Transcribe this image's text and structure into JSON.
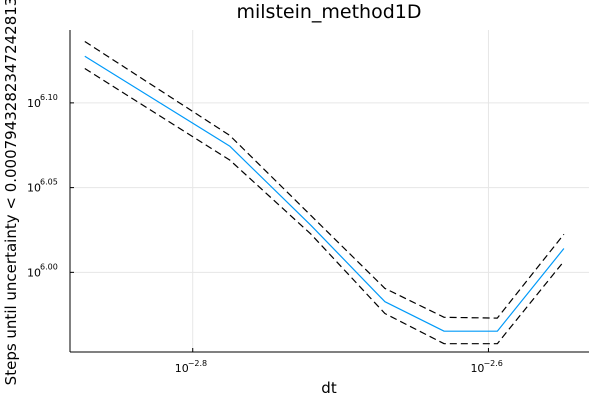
{
  "chart_data": {
    "type": "line",
    "title": "milstein_method1D",
    "xlabel": "dt",
    "ylabel": "Steps until uncertainty < 0.0007943282347242813",
    "x_scale": "log10",
    "y_scale": "log10",
    "xlim_log10": [
      -2.883,
      -2.532
    ],
    "ylim_log10": [
      5.953,
      6.143
    ],
    "grid": true,
    "legend": "none",
    "x_ticks": [
      {
        "base": "10",
        "exp": "−2.8",
        "log10": -2.8
      },
      {
        "base": "10",
        "exp": "−2.6",
        "log10": -2.6
      }
    ],
    "y_ticks": [
      {
        "base": "10",
        "exp": "6.10",
        "log10": 6.1
      },
      {
        "base": "10",
        "exp": "6.05",
        "log10": 6.05
      },
      {
        "base": "10",
        "exp": "6.00",
        "log10": 6.0
      }
    ],
    "series": [
      {
        "role": "mean",
        "color": "#009af9",
        "dash": "solid",
        "x_log10": [
          -2.873,
          -2.775,
          -2.72,
          -2.67,
          -2.63,
          -2.594,
          -2.549
        ],
        "y_log10": [
          6.1275,
          6.0745,
          6.0277,
          5.9827,
          5.9653,
          5.9653,
          6.0141
        ]
      },
      {
        "role": "upper",
        "color": "#000000",
        "dash": "dashed",
        "x_log10": [
          -2.873,
          -2.775,
          -2.72,
          -2.67,
          -2.63,
          -2.594,
          -2.549
        ],
        "y_log10": [
          6.1362,
          6.0808,
          6.0335,
          5.9905,
          5.9735,
          5.973,
          6.0225
        ]
      },
      {
        "role": "lower",
        "color": "#000000",
        "dash": "dashed",
        "x_log10": [
          -2.873,
          -2.775,
          -2.72,
          -2.67,
          -2.63,
          -2.594,
          -2.549
        ],
        "y_log10": [
          6.1203,
          6.0663,
          6.0225,
          5.9757,
          5.9579,
          5.9579,
          6.0065
        ]
      }
    ]
  }
}
